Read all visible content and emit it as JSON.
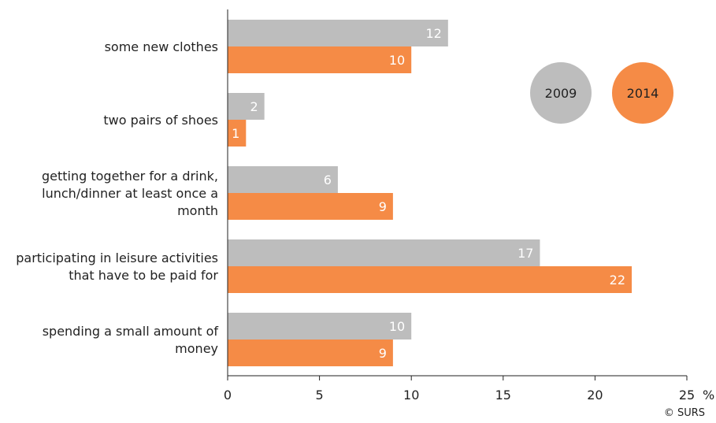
{
  "chart_data": {
    "type": "bar",
    "orientation": "horizontal",
    "categories": [
      [
        "some new clothes"
      ],
      [
        "two pairs of shoes"
      ],
      [
        "getting together for a drink,",
        "lunch/dinner at least once a",
        "month"
      ],
      [
        "participating in leisure activities",
        "that have to be paid for"
      ],
      [
        "spending a small amount of",
        "money"
      ]
    ],
    "series": [
      {
        "name": "2009",
        "color": "#bdbdbd",
        "values": [
          12,
          2,
          6,
          17,
          10
        ]
      },
      {
        "name": "2014",
        "color": "#f58b46",
        "values": [
          10,
          1,
          9,
          22,
          9
        ]
      }
    ],
    "xlim": [
      0,
      25
    ],
    "xticks": [
      0,
      5,
      10,
      15,
      20,
      25
    ],
    "unit": "%",
    "legend_placement": "top-right",
    "grid": false
  },
  "source": "© SURS"
}
